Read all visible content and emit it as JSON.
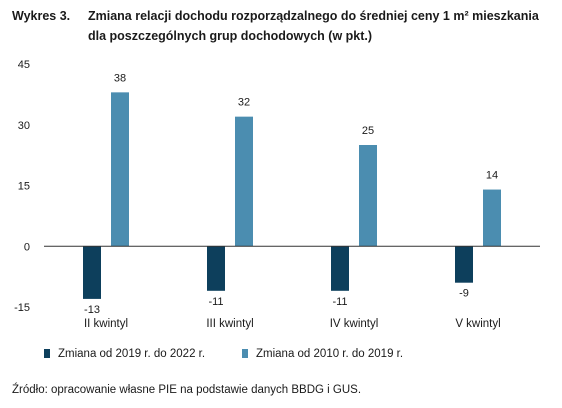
{
  "figure": {
    "prefix": "Wykres 3.",
    "title": "Zmiana relacji dochodu rozporządzalnego do średniej ceny 1 m² mieszkania dla poszczególnych grup dochodowych (w pkt.)",
    "source": "Źródło: opracowanie własne PIE na podstawie danych BBDG i GUS."
  },
  "colors": {
    "series1": "#0d3f5c",
    "series2": "#4b8db0",
    "axis": "#333333",
    "text": "#1a1a1a"
  },
  "chart_data": {
    "type": "bar",
    "categories": [
      "II kwintyl",
      "III kwintyl",
      "IV kwintyl",
      "V kwintyl"
    ],
    "series": [
      {
        "name": "Zmiana od 2019 r. do 2022 r.",
        "values": [
          -13,
          -11,
          -11,
          -9
        ]
      },
      {
        "name": "Zmiana od 2010 r. do 2019 r.",
        "values": [
          38,
          32,
          25,
          14
        ]
      }
    ],
    "value_labels": [
      [
        "-13",
        "-11",
        "-11",
        "-9"
      ],
      [
        "38",
        "32",
        "25",
        "14"
      ]
    ],
    "yticks": [
      45,
      30,
      15,
      0,
      -15
    ],
    "ytick_labels": [
      "45",
      "30",
      "15",
      "0",
      "-15"
    ],
    "ylim": [
      -15,
      45
    ],
    "xlabel": "",
    "ylabel": "",
    "grid": false,
    "legend_position": "bottom"
  }
}
